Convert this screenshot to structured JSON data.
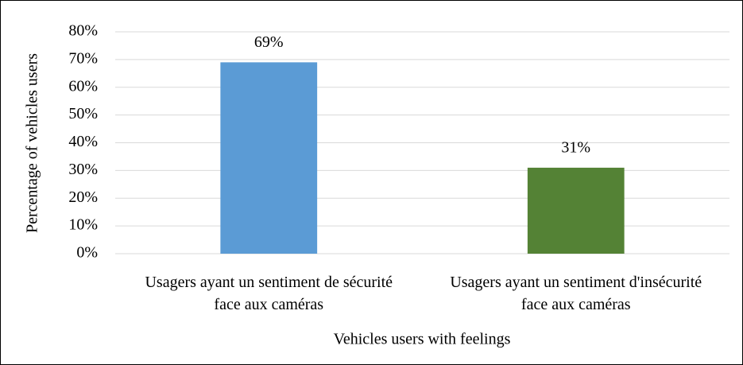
{
  "chart_data": {
    "type": "bar",
    "categories": [
      "Usagers ayant un sentiment de sécurité face aux caméras",
      "Usagers ayant un sentiment d'insécurité face aux caméras"
    ],
    "values": [
      69,
      31
    ],
    "value_labels": [
      "69%",
      "31%"
    ],
    "colors": [
      "#5b9bd5",
      "#548235"
    ],
    "ylim": [
      0,
      80
    ],
    "yticks": [
      {
        "value": 0,
        "label": "0%"
      },
      {
        "value": 10,
        "label": "10%"
      },
      {
        "value": 20,
        "label": "20%"
      },
      {
        "value": 30,
        "label": "30%"
      },
      {
        "value": 40,
        "label": "40%"
      },
      {
        "value": 50,
        "label": "50%"
      },
      {
        "value": 60,
        "label": "60%"
      },
      {
        "value": 70,
        "label": "70%"
      },
      {
        "value": 80,
        "label": "80%"
      }
    ],
    "grid": true,
    "xlabel": "Vehicles users with feelings",
    "ylabel": "Percentage of vehicles users"
  }
}
